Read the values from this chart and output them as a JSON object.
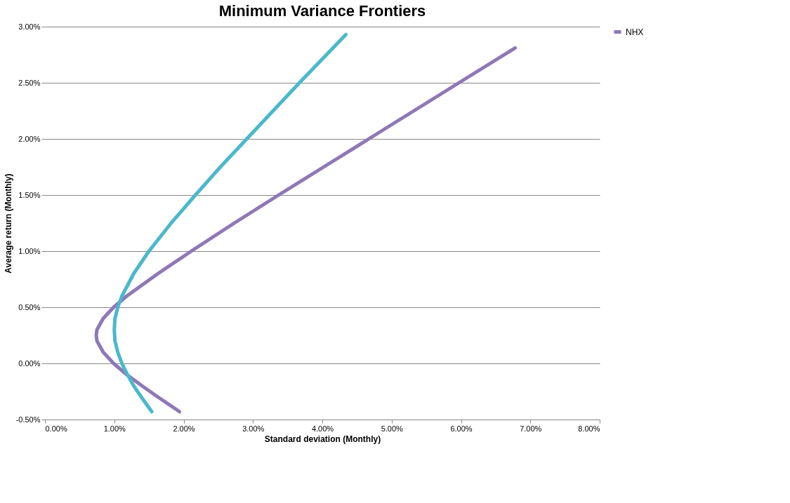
{
  "chart_data": {
    "type": "line",
    "title": "Minimum Variance Frontiers",
    "xlabel": "Standard deviation (Monthly)",
    "ylabel": "Average return (Monthly)",
    "series": [
      {
        "name": "NHX",
        "color": "#8e78b6",
        "x": [
          1.94,
          1.63,
          1.4,
          1.18,
          0.99,
          0.84,
          0.75,
          0.74,
          0.75,
          0.84,
          0.99,
          1.18,
          1.63,
          2.11,
          2.73,
          3.37,
          4.02,
          4.67,
          5.32,
          5.97,
          6.78
        ],
        "values": [
          -0.43,
          -0.3,
          -0.2,
          -0.1,
          0,
          0.1,
          0.2,
          0.25,
          0.3,
          0.4,
          0.5,
          0.6,
          0.8,
          1.0,
          1.25,
          1.5,
          1.75,
          2.0,
          2.25,
          2.5,
          2.81
        ]
      },
      {
        "color": "#4bb8cc",
        "x": [
          1.54,
          1.39,
          1.28,
          1.19,
          1.11,
          1.05,
          1.01,
          1.0,
          1.01,
          1.05,
          1.11,
          1.28,
          1.5,
          1.82,
          2.17,
          2.53,
          2.91,
          3.29,
          3.67,
          4.06,
          4.34
        ],
        "values": [
          -0.43,
          -0.3,
          -0.2,
          -0.1,
          0,
          0.1,
          0.2,
          0.3,
          0.4,
          0.5,
          0.6,
          0.8,
          1.0,
          1.25,
          1.5,
          1.75,
          2.0,
          2.25,
          2.5,
          2.75,
          2.93
        ]
      }
    ],
    "xlim": [
      0,
      8
    ],
    "ylim": [
      -0.5,
      3
    ],
    "xticks": [
      {
        "value": 0,
        "label": "0.00%"
      },
      {
        "value": 1,
        "label": "1.00%"
      },
      {
        "value": 2,
        "label": "2.00%"
      },
      {
        "value": 3,
        "label": "3.00%"
      },
      {
        "value": 4,
        "label": "4.00%"
      },
      {
        "value": 5,
        "label": "5.00%"
      },
      {
        "value": 6,
        "label": "6.00%"
      },
      {
        "value": 7,
        "label": "7.00%"
      },
      {
        "value": 8,
        "label": "8.00%"
      }
    ],
    "yticks": [
      {
        "value": -0.5,
        "label": "-0.50%"
      },
      {
        "value": 0,
        "label": "0.00%"
      },
      {
        "value": 0.5,
        "label": "0.50%"
      },
      {
        "value": 1,
        "label": "1.00%"
      },
      {
        "value": 1.5,
        "label": "1.50%"
      },
      {
        "value": 2,
        "label": "2.00%"
      },
      {
        "value": 2.5,
        "label": "2.50%"
      },
      {
        "value": 3,
        "label": "3.00%"
      }
    ],
    "grid": "y",
    "legend": "right",
    "marker": "none",
    "line_style": "solid"
  }
}
